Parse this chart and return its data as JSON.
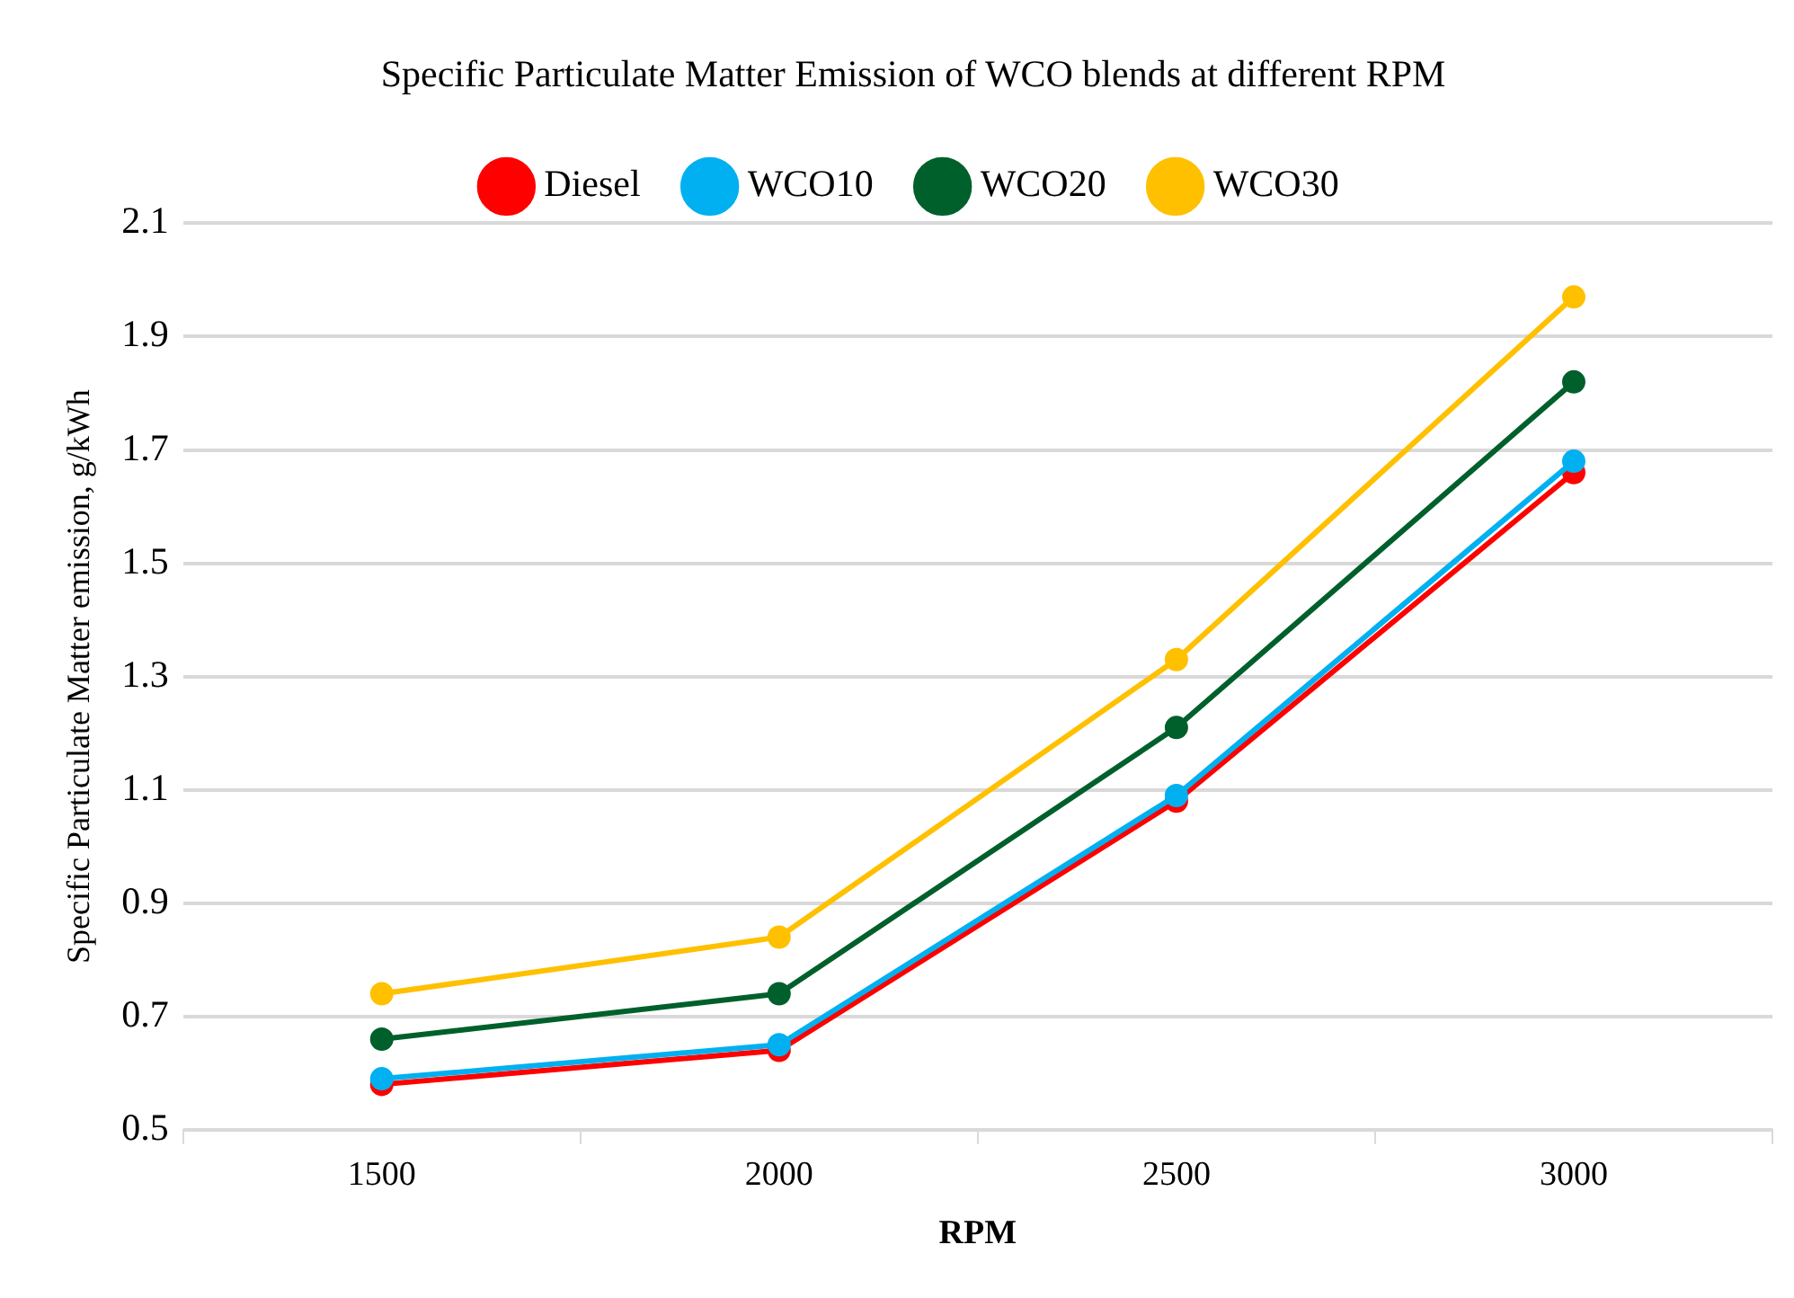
{
  "chart_data": {
    "type": "line",
    "title": "Specific Particulate Matter Emission of WCO blends at different RPM",
    "xlabel": "RPM",
    "ylabel": "Specific Particulate Matter emission, g/kWh",
    "categories": [
      "1500",
      "2000",
      "2500",
      "3000"
    ],
    "series": [
      {
        "name": "Diesel",
        "color": "#ff0000",
        "values": [
          0.58,
          0.64,
          1.08,
          1.66
        ]
      },
      {
        "name": "WCO10",
        "color": "#00b0f0",
        "values": [
          0.59,
          0.65,
          1.09,
          1.68
        ]
      },
      {
        "name": "WCO20",
        "color": "#00602b",
        "values": [
          0.66,
          0.74,
          1.21,
          1.82
        ]
      },
      {
        "name": "WCO30",
        "color": "#ffc000",
        "values": [
          0.74,
          0.84,
          1.33,
          1.97
        ]
      }
    ],
    "ylim": [
      0.5,
      2.1
    ],
    "yticks": [
      0.5,
      0.7,
      0.9,
      1.1,
      1.3,
      1.5,
      1.7,
      1.9,
      2.1
    ],
    "grid": "y",
    "legend": "top",
    "marker": "circle",
    "line_style": "solid"
  }
}
